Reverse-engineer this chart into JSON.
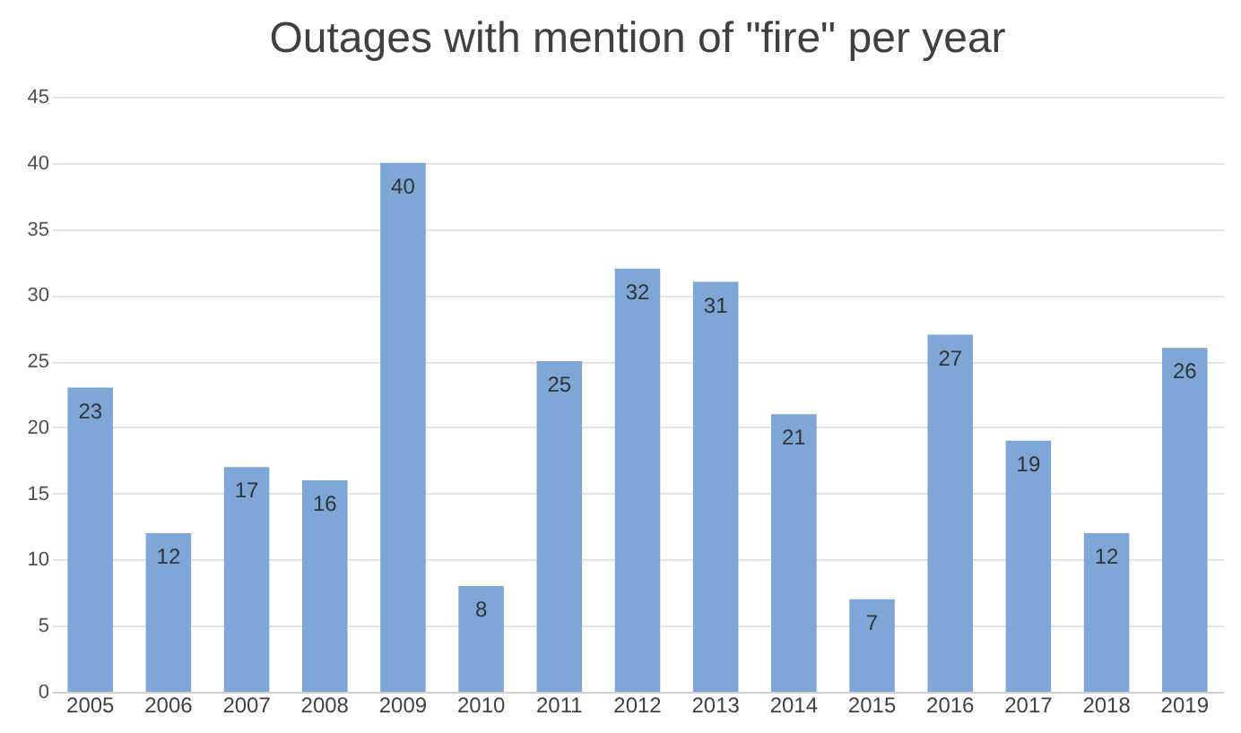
{
  "chart_data": {
    "type": "bar",
    "title": "Outages with mention of \"fire\" per year",
    "categories": [
      "2005",
      "2006",
      "2007",
      "2008",
      "2009",
      "2010",
      "2011",
      "2012",
      "2013",
      "2014",
      "2015",
      "2016",
      "2017",
      "2018",
      "2019"
    ],
    "values": [
      23,
      12,
      17,
      16,
      40,
      8,
      25,
      32,
      31,
      21,
      7,
      27,
      19,
      12,
      26
    ],
    "color": "#7ea6d6",
    "ylim": [
      0,
      45
    ],
    "yticks": [
      0,
      5,
      10,
      15,
      20,
      25,
      30,
      35,
      40,
      45
    ],
    "grid": "y",
    "data_labels": true
  }
}
